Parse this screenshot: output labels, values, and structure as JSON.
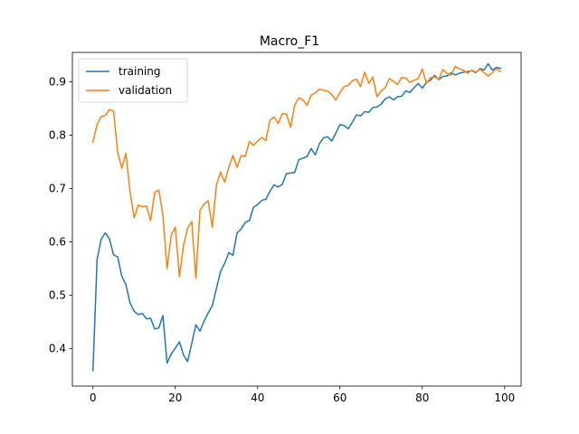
{
  "chart_data": {
    "type": "line",
    "title": "Macro_F1",
    "xlabel": "",
    "ylabel": "",
    "xlim": [
      -5,
      104
    ],
    "ylim": [
      0.33,
      0.955
    ],
    "xticks": [
      0,
      20,
      40,
      60,
      80,
      100
    ],
    "yticks": [
      0.4,
      0.5,
      0.6,
      0.7,
      0.8,
      0.9
    ],
    "grid": false,
    "legend_position": "upper-left",
    "series": [
      {
        "name": "training",
        "color": "#1f77b4",
        "x": [
          0,
          1,
          2,
          3,
          4,
          5,
          6,
          7,
          8,
          9,
          10,
          11,
          12,
          13,
          14,
          15,
          16,
          17,
          18,
          19,
          20,
          21,
          22,
          23,
          24,
          25,
          26,
          27,
          28,
          29,
          30,
          31,
          32,
          33,
          34,
          35,
          36,
          37,
          38,
          39,
          40,
          41,
          42,
          43,
          44,
          45,
          46,
          47,
          48,
          49,
          50,
          51,
          52,
          53,
          54,
          55,
          56,
          57,
          58,
          59,
          60,
          61,
          62,
          63,
          64,
          65,
          66,
          67,
          68,
          69,
          70,
          71,
          72,
          73,
          74,
          75,
          76,
          77,
          78,
          79,
          80,
          81,
          82,
          83,
          84,
          85,
          86,
          87,
          88,
          89,
          90,
          91,
          92,
          93,
          94,
          95,
          96,
          97,
          98,
          99
        ],
        "values": [
          0.359,
          0.567,
          0.605,
          0.617,
          0.606,
          0.576,
          0.572,
          0.536,
          0.52,
          0.486,
          0.47,
          0.464,
          0.466,
          0.456,
          0.457,
          0.437,
          0.439,
          0.462,
          0.373,
          0.39,
          0.401,
          0.413,
          0.388,
          0.376,
          0.41,
          0.445,
          0.433,
          0.452,
          0.467,
          0.481,
          0.513,
          0.545,
          0.56,
          0.58,
          0.575,
          0.617,
          0.624,
          0.637,
          0.64,
          0.665,
          0.67,
          0.678,
          0.68,
          0.695,
          0.707,
          0.703,
          0.708,
          0.728,
          0.729,
          0.73,
          0.754,
          0.757,
          0.76,
          0.775,
          0.763,
          0.784,
          0.795,
          0.797,
          0.789,
          0.804,
          0.82,
          0.818,
          0.812,
          0.824,
          0.838,
          0.836,
          0.844,
          0.843,
          0.852,
          0.853,
          0.858,
          0.868,
          0.872,
          0.866,
          0.872,
          0.873,
          0.883,
          0.88,
          0.889,
          0.897,
          0.888,
          0.899,
          0.903,
          0.912,
          0.904,
          0.91,
          0.911,
          0.917,
          0.913,
          0.916,
          0.918,
          0.919,
          0.921,
          0.917,
          0.925,
          0.922,
          0.934,
          0.922,
          0.927,
          0.925
        ]
      },
      {
        "name": "validation",
        "color": "#ff7f0e",
        "x": [
          0,
          1,
          2,
          3,
          4,
          5,
          6,
          7,
          8,
          9,
          10,
          11,
          12,
          13,
          14,
          15,
          16,
          17,
          18,
          19,
          20,
          21,
          22,
          23,
          24,
          25,
          26,
          27,
          28,
          29,
          30,
          31,
          32,
          33,
          34,
          35,
          36,
          37,
          38,
          39,
          40,
          41,
          42,
          43,
          44,
          45,
          46,
          47,
          48,
          49,
          50,
          51,
          52,
          53,
          54,
          55,
          56,
          57,
          58,
          59,
          60,
          61,
          62,
          63,
          64,
          65,
          66,
          67,
          68,
          69,
          70,
          71,
          72,
          73,
          74,
          75,
          76,
          77,
          78,
          79,
          80,
          81,
          82,
          83,
          84,
          85,
          86,
          87,
          88,
          89,
          90,
          91,
          92,
          93,
          94,
          95,
          96,
          97,
          98,
          99
        ],
        "values": [
          0.787,
          0.82,
          0.835,
          0.837,
          0.848,
          0.845,
          0.768,
          0.738,
          0.766,
          0.695,
          0.645,
          0.669,
          0.666,
          0.667,
          0.64,
          0.693,
          0.697,
          0.65,
          0.55,
          0.612,
          0.628,
          0.535,
          0.594,
          0.626,
          0.638,
          0.532,
          0.659,
          0.671,
          0.677,
          0.627,
          0.707,
          0.731,
          0.712,
          0.74,
          0.762,
          0.74,
          0.762,
          0.76,
          0.788,
          0.781,
          0.789,
          0.796,
          0.79,
          0.828,
          0.834,
          0.822,
          0.84,
          0.84,
          0.815,
          0.856,
          0.87,
          0.866,
          0.856,
          0.875,
          0.879,
          0.886,
          0.884,
          0.883,
          0.876,
          0.866,
          0.88,
          0.891,
          0.893,
          0.902,
          0.905,
          0.891,
          0.918,
          0.897,
          0.909,
          0.872,
          0.883,
          0.889,
          0.906,
          0.901,
          0.895,
          0.908,
          0.907,
          0.899,
          0.903,
          0.906,
          0.924,
          0.897,
          0.908,
          0.909,
          0.905,
          0.923,
          0.916,
          0.912,
          0.929,
          0.924,
          0.922,
          0.916,
          0.922,
          0.918,
          0.924,
          0.917,
          0.911,
          0.917,
          0.925,
          0.919
        ]
      }
    ]
  }
}
